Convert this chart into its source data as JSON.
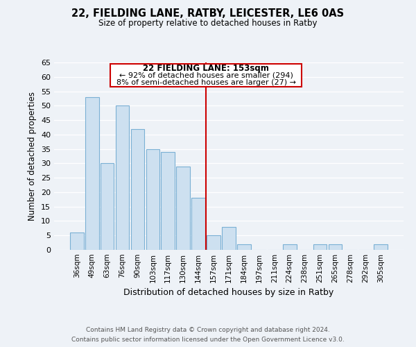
{
  "title": "22, FIELDING LANE, RATBY, LEICESTER, LE6 0AS",
  "subtitle": "Size of property relative to detached houses in Ratby",
  "xlabel": "Distribution of detached houses by size in Ratby",
  "ylabel": "Number of detached properties",
  "bar_color": "#cde0f0",
  "bar_edge_color": "#7ab0d4",
  "categories": [
    "36sqm",
    "49sqm",
    "63sqm",
    "76sqm",
    "90sqm",
    "103sqm",
    "117sqm",
    "130sqm",
    "144sqm",
    "157sqm",
    "171sqm",
    "184sqm",
    "197sqm",
    "211sqm",
    "224sqm",
    "238sqm",
    "251sqm",
    "265sqm",
    "278sqm",
    "292sqm",
    "305sqm"
  ],
  "values": [
    6,
    53,
    30,
    50,
    42,
    35,
    34,
    29,
    18,
    5,
    8,
    2,
    0,
    0,
    2,
    0,
    2,
    2,
    0,
    0,
    2
  ],
  "ylim": [
    0,
    65
  ],
  "yticks": [
    0,
    5,
    10,
    15,
    20,
    25,
    30,
    35,
    40,
    45,
    50,
    55,
    60,
    65
  ],
  "vline_x_index": 9,
  "vline_color": "#cc0000",
  "annotation_title": "22 FIELDING LANE: 153sqm",
  "annotation_line1": "← 92% of detached houses are smaller (294)",
  "annotation_line2": "8% of semi-detached houses are larger (27) →",
  "annotation_box_color": "#ffffff",
  "annotation_box_edge": "#cc0000",
  "footer_line1": "Contains HM Land Registry data © Crown copyright and database right 2024.",
  "footer_line2": "Contains public sector information licensed under the Open Government Licence v3.0.",
  "background_color": "#eef2f7",
  "grid_color": "#ffffff"
}
